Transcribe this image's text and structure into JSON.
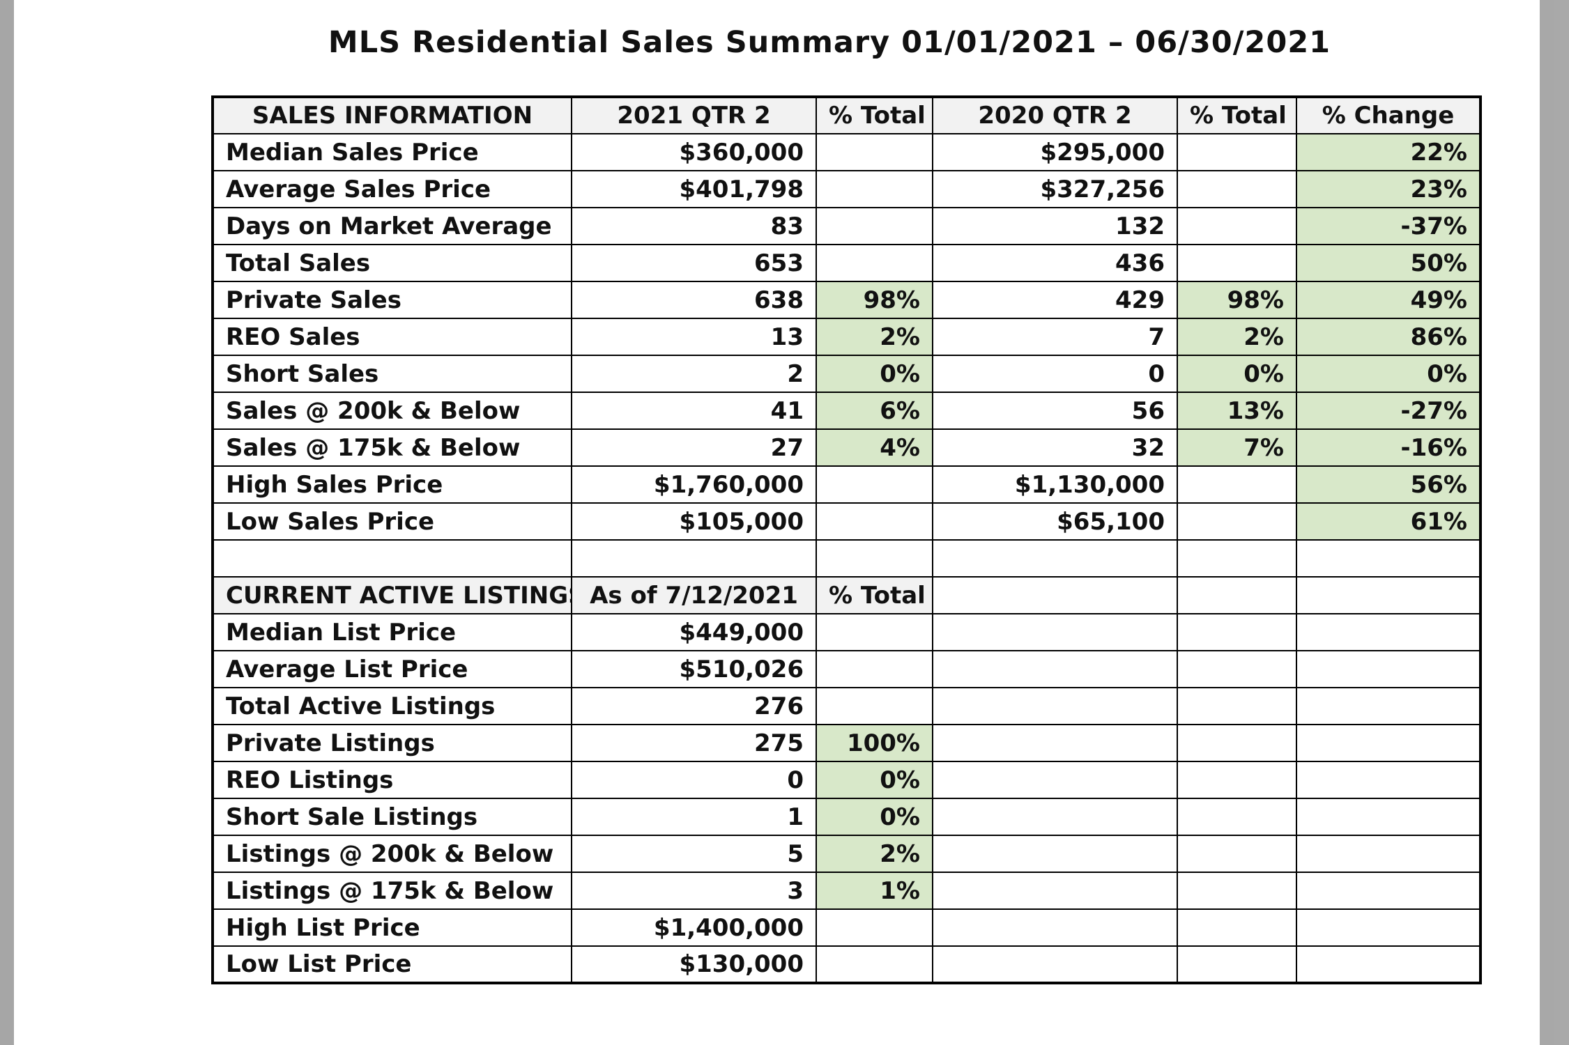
{
  "title": "MLS Residential Sales Summary 01/01/2021 – 06/30/2021",
  "colors": {
    "highlight": "#d8e8c9",
    "header_bg": "#f2f2f2"
  },
  "sales_headers": [
    "SALES INFORMATION",
    "2021 QTR 2",
    "% Total",
    "2020 QTR 2",
    "% Total",
    "% Change"
  ],
  "sales_rows": [
    {
      "label": "Median Sales Price",
      "q2021": "$360,000",
      "pct2021": "",
      "q2020": "$295,000",
      "pct2020": "",
      "change": "22%"
    },
    {
      "label": "Average Sales Price",
      "q2021": "$401,798",
      "pct2021": "",
      "q2020": "$327,256",
      "pct2020": "",
      "change": "23%"
    },
    {
      "label": "Days on Market Average",
      "q2021": "83",
      "pct2021": "",
      "q2020": "132",
      "pct2020": "",
      "change": "-37%"
    },
    {
      "label": "Total Sales",
      "q2021": "653",
      "pct2021": "",
      "q2020": "436",
      "pct2020": "",
      "change": "50%"
    },
    {
      "label": "Private Sales",
      "q2021": "638",
      "pct2021": "98%",
      "q2020": "429",
      "pct2020": "98%",
      "change": "49%"
    },
    {
      "label": "REO Sales",
      "q2021": "13",
      "pct2021": "2%",
      "q2020": "7",
      "pct2020": "2%",
      "change": "86%"
    },
    {
      "label": "Short Sales",
      "q2021": "2",
      "pct2021": "0%",
      "q2020": "0",
      "pct2020": "0%",
      "change": "0%"
    },
    {
      "label": "Sales @ 200k & Below",
      "q2021": "41",
      "pct2021": "6%",
      "q2020": "56",
      "pct2020": "13%",
      "change": "-27%"
    },
    {
      "label": "Sales @ 175k & Below",
      "q2021": "27",
      "pct2021": "4%",
      "q2020": "32",
      "pct2020": "7%",
      "change": "-16%"
    },
    {
      "label": "High Sales Price",
      "q2021": "$1,760,000",
      "pct2021": "",
      "q2020": "$1,130,000",
      "pct2020": "",
      "change": "56%"
    },
    {
      "label": "Low Sales Price",
      "q2021": "$105,000",
      "pct2021": "",
      "q2020": "$65,100",
      "pct2020": "",
      "change": "61%"
    }
  ],
  "listing_headers": [
    "CURRENT ACTIVE LISTINGS",
    "As of 7/12/2021",
    "% Total"
  ],
  "listing_rows": [
    {
      "label": "Median List Price",
      "value": "$449,000",
      "pct": ""
    },
    {
      "label": "Average List Price",
      "value": "$510,026",
      "pct": ""
    },
    {
      "label": "Total Active Listings",
      "value": "276",
      "pct": ""
    },
    {
      "label": "Private Listings",
      "value": "275",
      "pct": "100%"
    },
    {
      "label": "REO Listings",
      "value": "0",
      "pct": "0%"
    },
    {
      "label": "Short Sale Listings",
      "value": "1",
      "pct": "0%"
    },
    {
      "label": "Listings @ 200k & Below",
      "value": "5",
      "pct": "2%"
    },
    {
      "label": "Listings @ 175k & Below",
      "value": "3",
      "pct": "1%"
    },
    {
      "label": "High List Price",
      "value": "$1,400,000",
      "pct": ""
    },
    {
      "label": "Low List Price",
      "value": "$130,000",
      "pct": ""
    }
  ]
}
